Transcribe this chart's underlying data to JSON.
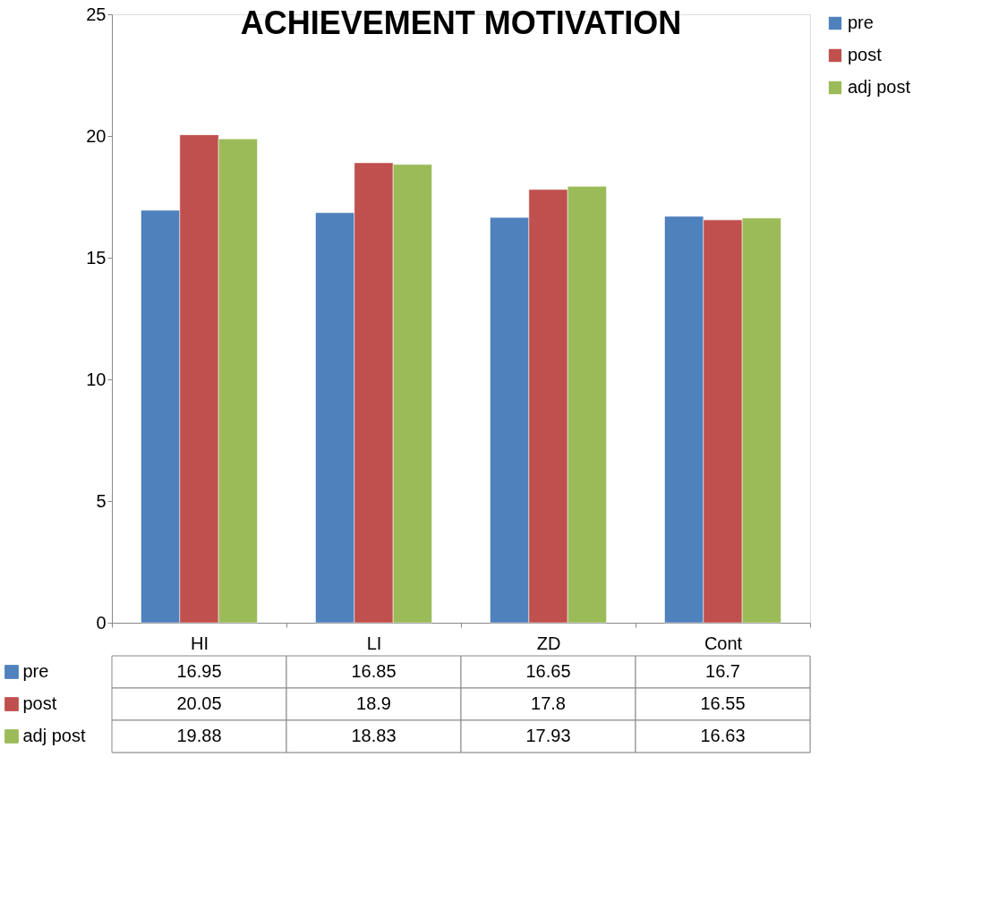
{
  "chart_data": {
    "type": "bar",
    "title": "ACHIEVEMENT MOTIVATION",
    "categories": [
      "HI",
      "LI",
      "ZD",
      "Cont"
    ],
    "series": [
      {
        "name": "pre",
        "color": "#4f81bd",
        "values": [
          16.95,
          16.85,
          16.65,
          16.7
        ]
      },
      {
        "name": "post",
        "color": "#c0504d",
        "values": [
          20.05,
          18.9,
          17.8,
          16.55
        ]
      },
      {
        "name": "adj post",
        "color": "#9bbb59",
        "values": [
          19.88,
          18.83,
          17.93,
          16.63
        ]
      }
    ],
    "ylim": [
      0,
      25
    ],
    "yticks": [
      0,
      5,
      10,
      15,
      20,
      25
    ],
    "grid": false,
    "legend": "right",
    "data_labels": true
  }
}
